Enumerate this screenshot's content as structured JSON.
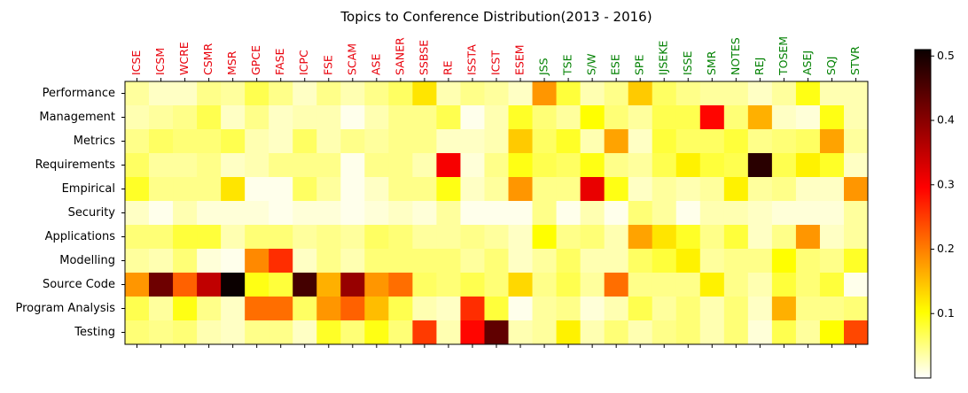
{
  "chart_data": {
    "type": "heatmap",
    "title": "Topics to Conference Distribution(2013 - 2016)",
    "xlabel": "",
    "ylabel": "",
    "colormap": "hot_r",
    "vmin": 0.0,
    "vmax": 0.51,
    "colorbar_ticks": [
      "0.1",
      "0.2",
      "0.3",
      "0.4",
      "0.5"
    ],
    "colorbar_tick_values": [
      0.1,
      0.2,
      0.3,
      0.4,
      0.5
    ],
    "grid": false,
    "x_categories": [
      "ICSE",
      "ICSM",
      "WCRE",
      "CSMR",
      "MSR",
      "GPCE",
      "FASE",
      "ICPC",
      "FSE",
      "SCAM",
      "ASE",
      "SANER",
      "SSBSE",
      "RE",
      "ISSTA",
      "ICST",
      "ESEM",
      "JSS",
      "TSE",
      "S/W",
      "ESE",
      "SPE",
      "IJSEKE",
      "ISSE",
      "SMR",
      "NOTES",
      "REJ",
      "TOSEM",
      "ASEJ",
      "SQJ",
      "STVR"
    ],
    "x_label_colors": {
      "conference": "#e8000b",
      "journal": "#008000"
    },
    "x_label_groups": [
      "conference",
      "conference",
      "conference",
      "conference",
      "conference",
      "conference",
      "conference",
      "conference",
      "conference",
      "conference",
      "conference",
      "conference",
      "conference",
      "conference",
      "conference",
      "conference",
      "conference",
      "journal",
      "journal",
      "journal",
      "journal",
      "journal",
      "journal",
      "journal",
      "journal",
      "journal",
      "journal",
      "journal",
      "journal",
      "journal",
      "journal"
    ],
    "y_categories": [
      "Performance",
      "Management",
      "Metrics",
      "Requirements",
      "Empirical",
      "Security",
      "Applications",
      "Modelling",
      "Source Code",
      "Program Analysis",
      "Testing"
    ],
    "values": [
      [
        0.05,
        0.03,
        0.03,
        0.06,
        0.05,
        0.09,
        0.06,
        0.03,
        0.06,
        0.04,
        0.06,
        0.08,
        0.15,
        0.04,
        0.06,
        0.05,
        0.03,
        0.21,
        0.1,
        0.04,
        0.06,
        0.17,
        0.08,
        0.06,
        0.05,
        0.05,
        0.03,
        0.05,
        0.12,
        0.04,
        0.04
      ],
      [
        0.04,
        0.05,
        0.06,
        0.09,
        0.03,
        0.06,
        0.03,
        0.04,
        0.04,
        0.01,
        0.04,
        0.06,
        0.06,
        0.09,
        0.01,
        0.04,
        0.11,
        0.07,
        0.05,
        0.13,
        0.07,
        0.05,
        0.09,
        0.09,
        0.32,
        0.07,
        0.19,
        0.03,
        0.02,
        0.12,
        0.04
      ],
      [
        0.06,
        0.08,
        0.07,
        0.07,
        0.09,
        0.04,
        0.03,
        0.08,
        0.04,
        0.06,
        0.05,
        0.06,
        0.06,
        0.03,
        0.03,
        0.04,
        0.17,
        0.08,
        0.11,
        0.04,
        0.2,
        0.03,
        0.1,
        0.08,
        0.08,
        0.1,
        0.06,
        0.07,
        0.08,
        0.2,
        0.05
      ],
      [
        0.08,
        0.05,
        0.05,
        0.06,
        0.03,
        0.04,
        0.06,
        0.06,
        0.06,
        0.01,
        0.06,
        0.06,
        0.04,
        0.33,
        0.02,
        0.06,
        0.12,
        0.09,
        0.08,
        0.12,
        0.06,
        0.05,
        0.09,
        0.14,
        0.1,
        0.09,
        0.48,
        0.09,
        0.14,
        0.11,
        0.03
      ],
      [
        0.11,
        0.06,
        0.06,
        0.06,
        0.15,
        0.01,
        0.01,
        0.08,
        0.05,
        0.01,
        0.03,
        0.06,
        0.06,
        0.12,
        0.03,
        0.05,
        0.21,
        0.06,
        0.06,
        0.34,
        0.12,
        0.03,
        0.05,
        0.04,
        0.05,
        0.14,
        0.05,
        0.06,
        0.03,
        0.03,
        0.21
      ],
      [
        0.03,
        0.01,
        0.04,
        0.02,
        0.02,
        0.02,
        0.01,
        0.02,
        0.02,
        0.01,
        0.02,
        0.03,
        0.02,
        0.05,
        0.01,
        0.01,
        0.01,
        0.06,
        0.01,
        0.04,
        0.01,
        0.07,
        0.05,
        0.01,
        0.04,
        0.04,
        0.03,
        0.02,
        0.02,
        0.02,
        0.05
      ],
      [
        0.07,
        0.07,
        0.1,
        0.1,
        0.04,
        0.07,
        0.07,
        0.05,
        0.06,
        0.05,
        0.08,
        0.07,
        0.05,
        0.05,
        0.06,
        0.05,
        0.03,
        0.13,
        0.06,
        0.07,
        0.04,
        0.2,
        0.15,
        0.11,
        0.06,
        0.1,
        0.03,
        0.06,
        0.21,
        0.03,
        0.05
      ],
      [
        0.05,
        0.04,
        0.07,
        0.02,
        0.01,
        0.22,
        0.29,
        0.03,
        0.06,
        0.04,
        0.07,
        0.07,
        0.07,
        0.07,
        0.05,
        0.07,
        0.03,
        0.05,
        0.08,
        0.04,
        0.04,
        0.08,
        0.1,
        0.14,
        0.05,
        0.06,
        0.06,
        0.13,
        0.07,
        0.06,
        0.11
      ],
      [
        0.21,
        0.43,
        0.25,
        0.37,
        0.51,
        0.12,
        0.1,
        0.46,
        0.19,
        0.4,
        0.21,
        0.24,
        0.08,
        0.07,
        0.09,
        0.07,
        0.16,
        0.06,
        0.09,
        0.05,
        0.24,
        0.06,
        0.06,
        0.06,
        0.14,
        0.06,
        0.04,
        0.1,
        0.07,
        0.1,
        0.01
      ],
      [
        0.09,
        0.05,
        0.12,
        0.06,
        0.03,
        0.24,
        0.24,
        0.08,
        0.21,
        0.25,
        0.18,
        0.09,
        0.04,
        0.03,
        0.29,
        0.1,
        0.01,
        0.05,
        0.06,
        0.02,
        0.04,
        0.09,
        0.05,
        0.07,
        0.04,
        0.07,
        0.03,
        0.19,
        0.06,
        0.06,
        0.07
      ],
      [
        0.07,
        0.06,
        0.07,
        0.04,
        0.03,
        0.06,
        0.06,
        0.03,
        0.11,
        0.07,
        0.12,
        0.07,
        0.28,
        0.04,
        0.32,
        0.44,
        0.04,
        0.05,
        0.14,
        0.04,
        0.07,
        0.04,
        0.06,
        0.07,
        0.04,
        0.07,
        0.02,
        0.09,
        0.05,
        0.13,
        0.27
      ]
    ]
  }
}
